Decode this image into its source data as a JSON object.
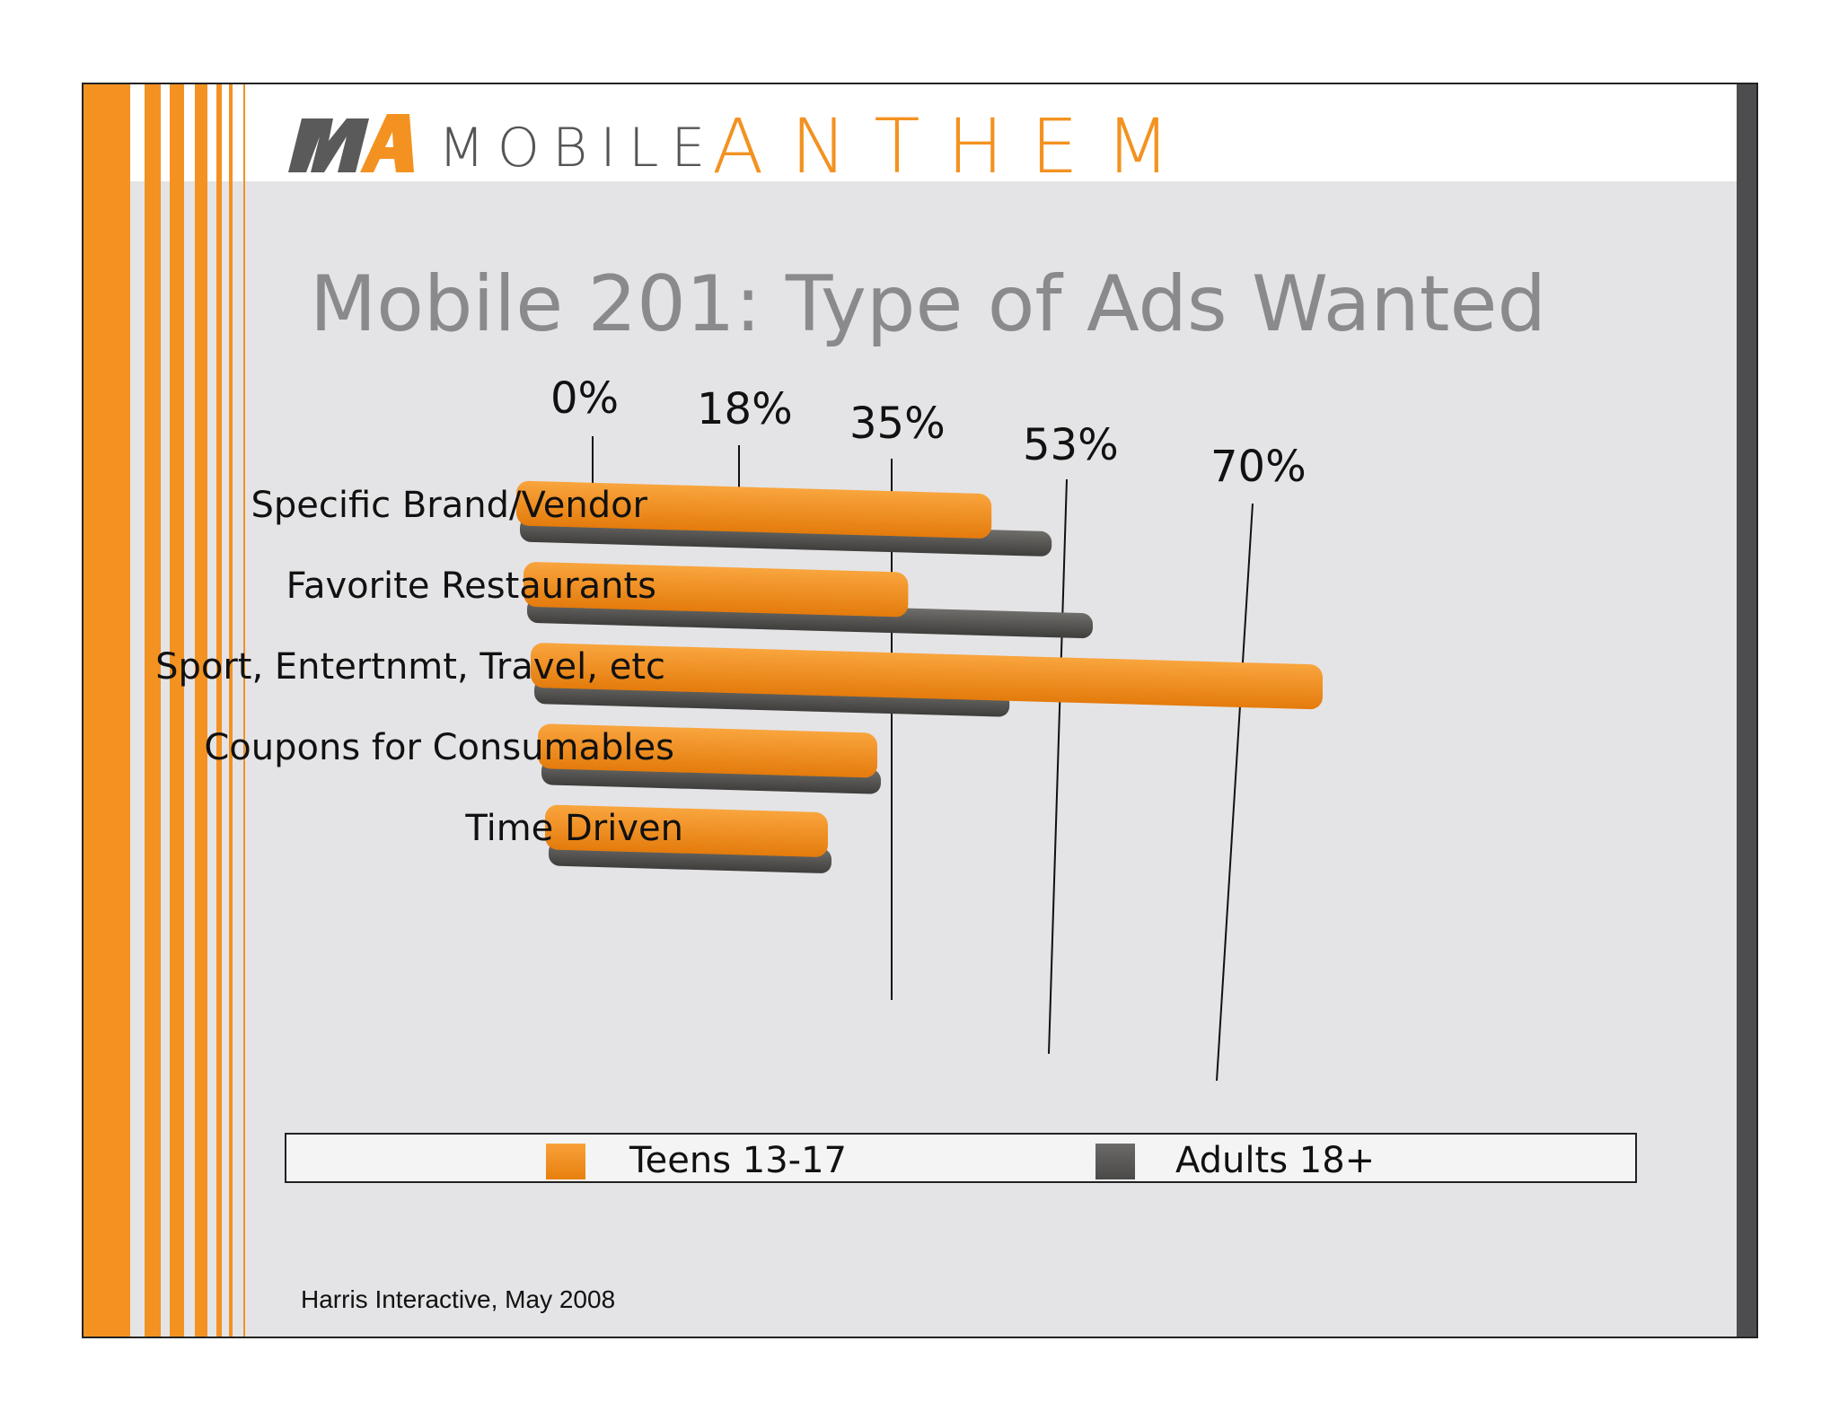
{
  "logo": {
    "mark": "MA",
    "word1": "MOBILE",
    "word2": "ANTHEM"
  },
  "title": "Mobile 201: Type of Ads Wanted",
  "source": "Harris Interactive, May 2008",
  "colors": {
    "teens": "#f39221",
    "adults": "#555452",
    "accent": "#f39221",
    "title": "#8a8a8c"
  },
  "chart_data": {
    "type": "bar",
    "orientation": "horizontal",
    "categories": [
      "Specific Brand/Vendor",
      "Favorite Restaurants",
      "Sport, Entertnmt, Travel, etc",
      "Coupons for Consumables",
      "Time Driven"
    ],
    "series": [
      {
        "name": "Teens 13-17",
        "values": [
          42,
          34,
          70,
          30,
          25
        ]
      },
      {
        "name": "Adults 18+",
        "values": [
          47,
          50,
          42,
          30,
          25
        ]
      }
    ],
    "ticks": [
      "0%",
      "18%",
      "35%",
      "53%",
      "70%"
    ],
    "xlim": [
      0,
      70
    ],
    "legend": "bottom",
    "grid": true
  }
}
